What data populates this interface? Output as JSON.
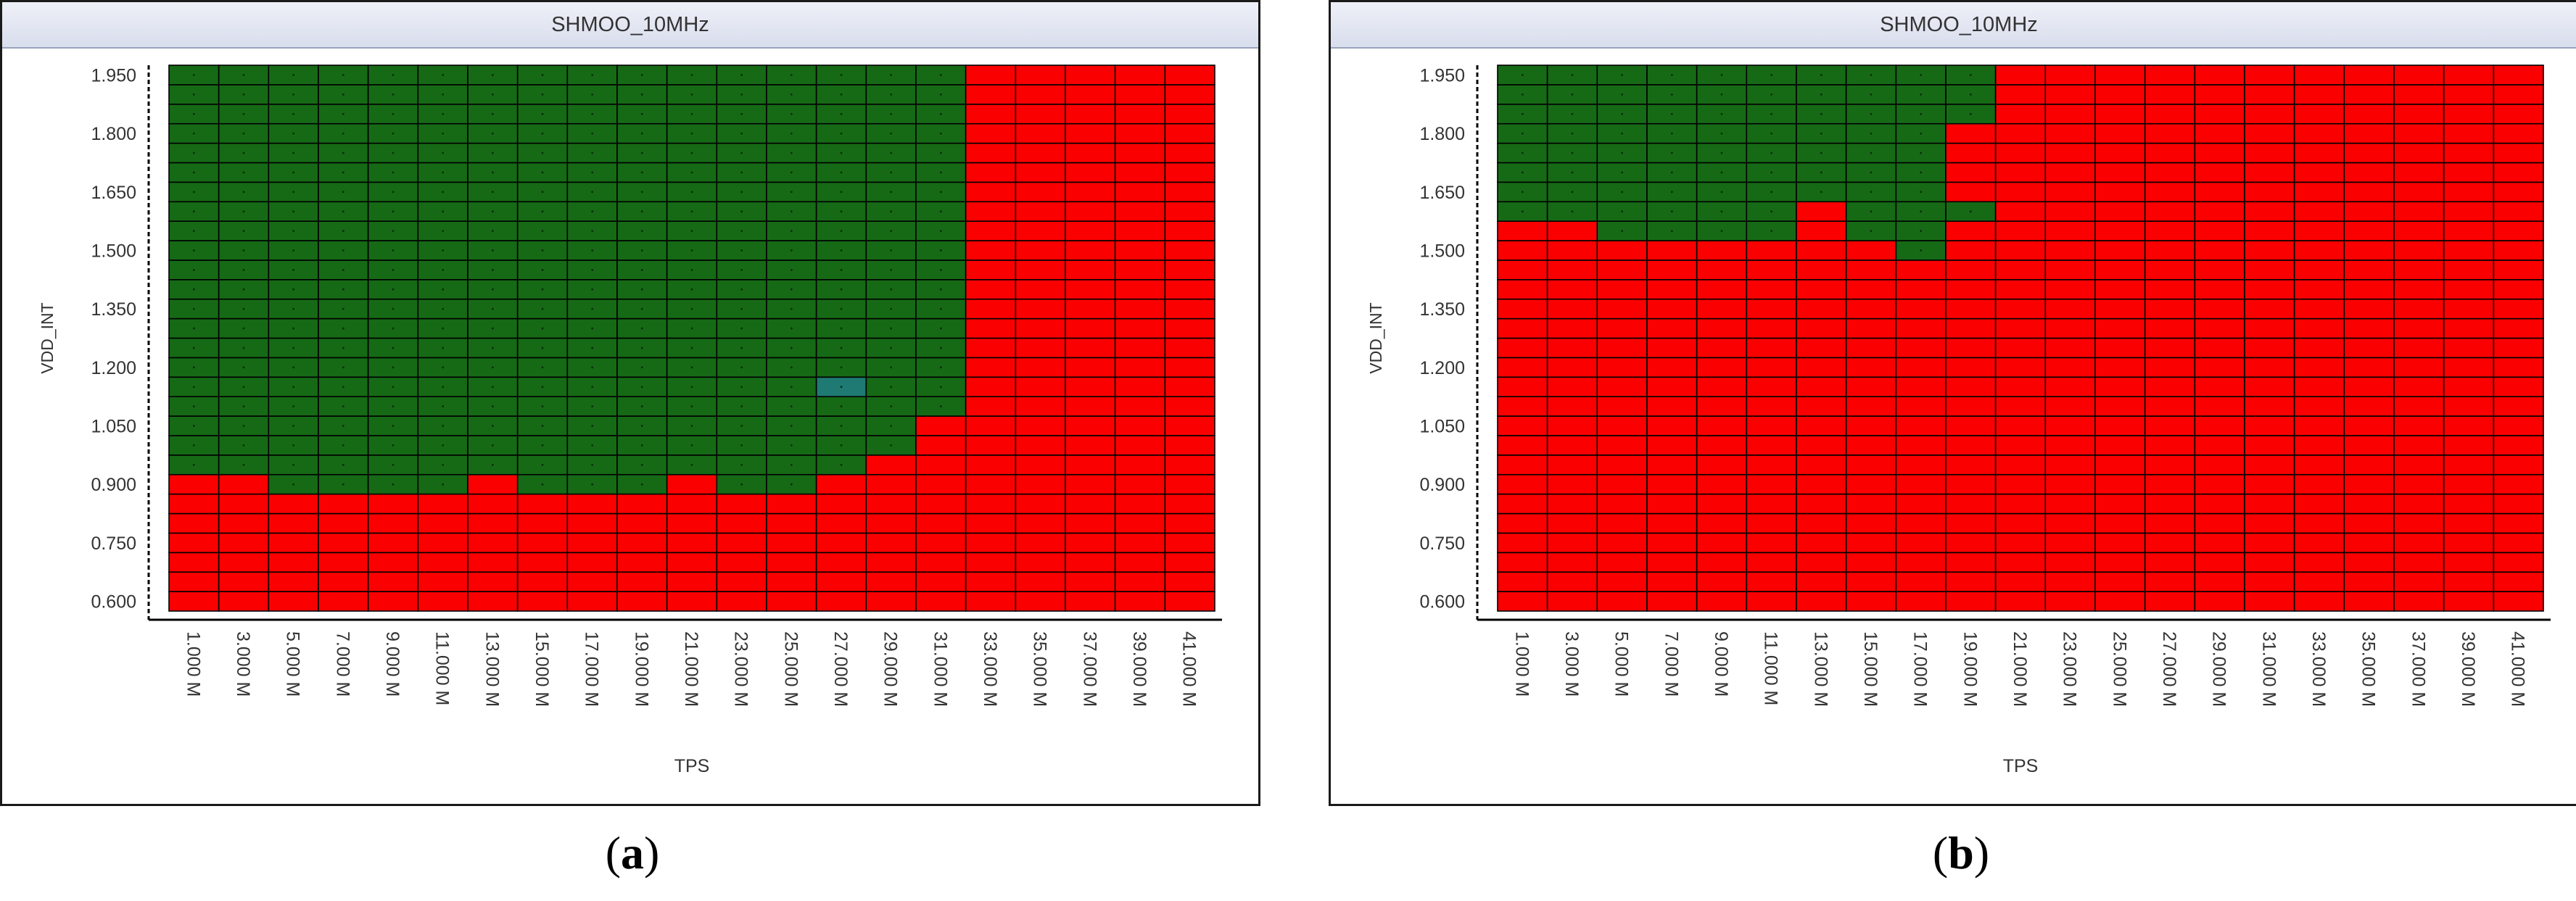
{
  "panels": [
    {
      "id": "a",
      "title": "SHMOO_10MHz",
      "caption_open": "(",
      "caption_letter": "a",
      "caption_close": ")"
    },
    {
      "id": "b",
      "title": "SHMOO_10MHz",
      "caption_open": "(",
      "caption_letter": "b",
      "caption_close": ")"
    }
  ],
  "chart_data": [
    {
      "type": "heatmap",
      "title": "SHMOO_10MHz",
      "xlabel": "TPS",
      "ylabel": "VDD_INT",
      "x_values_mhz": [
        1,
        3,
        5,
        7,
        9,
        11,
        13,
        15,
        17,
        19,
        21,
        23,
        25,
        27,
        29,
        31,
        33,
        35,
        37,
        39,
        41
      ],
      "x_tick_labels": [
        "1.000 M",
        "3.000 M",
        "5.000 M",
        "7.000 M",
        "9.000 M",
        "11.000 M",
        "13.000 M",
        "15.000 M",
        "17.000 M",
        "19.000 M",
        "21.000 M",
        "23.000 M",
        "25.000 M",
        "27.000 M",
        "29.000 M",
        "31.000 M",
        "33.000 M",
        "35.000 M",
        "37.000 M",
        "39.000 M",
        "41.000 M"
      ],
      "y_range": [
        0.6,
        2.0
      ],
      "y_step": 0.05,
      "y_tick_labels": [
        "1.950",
        "1.800",
        "1.650",
        "1.500",
        "1.350",
        "1.200",
        "1.050",
        "0.900",
        "0.750",
        "0.600"
      ],
      "pass_min_vdd": [
        0.95,
        0.95,
        0.9,
        0.9,
        0.9,
        0.9,
        0.95,
        0.9,
        0.9,
        0.9,
        0.95,
        0.9,
        0.9,
        0.95,
        1.0,
        1.1,
        null,
        null,
        null,
        null,
        null
      ],
      "special_cells": [
        {
          "x_mhz": 27,
          "vdd": 1.15,
          "color": "#1e7a72"
        }
      ],
      "colors": {
        "pass": "#166a16",
        "fail": "#fb0000"
      }
    },
    {
      "type": "heatmap",
      "title": "SHMOO_10MHz",
      "xlabel": "TPS",
      "ylabel": "VDD_INT",
      "x_values_mhz": [
        1,
        3,
        5,
        7,
        9,
        11,
        13,
        15,
        17,
        19,
        21,
        23,
        25,
        27,
        29,
        31,
        33,
        35,
        37,
        39,
        41
      ],
      "x_tick_labels": [
        "1.000 M",
        "3.000 M",
        "5.000 M",
        "7.000 M",
        "9.000 M",
        "11.000 M",
        "13.000 M",
        "15.000 M",
        "17.000 M",
        "19.000 M",
        "21.000 M",
        "23.000 M",
        "25.000 M",
        "27.000 M",
        "29.000 M",
        "31.000 M",
        "33.000 M",
        "35.000 M",
        "37.000 M",
        "39.000 M",
        "41.000 M"
      ],
      "y_range": [
        0.6,
        2.0
      ],
      "y_step": 0.05,
      "y_tick_labels": [
        "1.950",
        "1.800",
        "1.650",
        "1.500",
        "1.350",
        "1.200",
        "1.050",
        "0.900",
        "0.750",
        "0.600"
      ],
      "pass_min_vdd": [
        1.6,
        1.6,
        1.55,
        1.55,
        1.55,
        1.55,
        1.65,
        1.55,
        1.5,
        1.6,
        null,
        null,
        null,
        null,
        null,
        null,
        null,
        null,
        null,
        null,
        null
      ],
      "fail_pockets": [
        {
          "x_mhz": 19,
          "vdd_from": 1.65,
          "vdd_to": 1.85
        }
      ],
      "colors": {
        "pass": "#166a16",
        "fail": "#fb0000"
      }
    }
  ]
}
